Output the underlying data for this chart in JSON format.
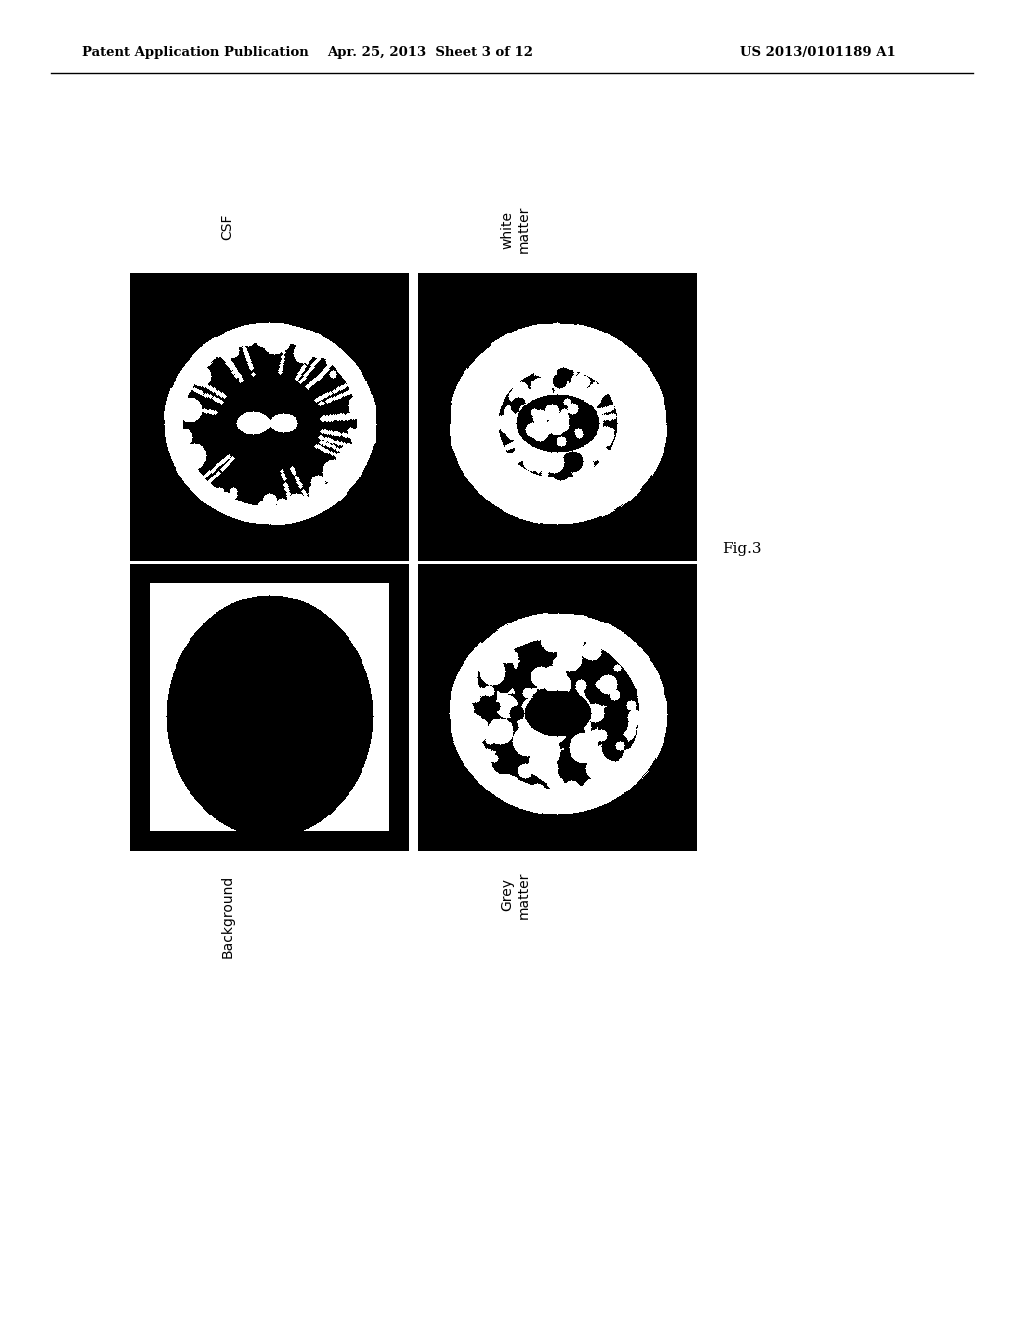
{
  "header_left": "Patent Application Publication",
  "header_center": "Apr. 25, 2013  Sheet 3 of 12",
  "header_right": "US 2013/0101189 A1",
  "fig_label": "Fig.3",
  "labels": {
    "top_left": "CSF",
    "top_right": "white\nmatter",
    "bottom_left": "Background",
    "bottom_right": "Grey\nmatter"
  },
  "background_color": "#ffffff"
}
